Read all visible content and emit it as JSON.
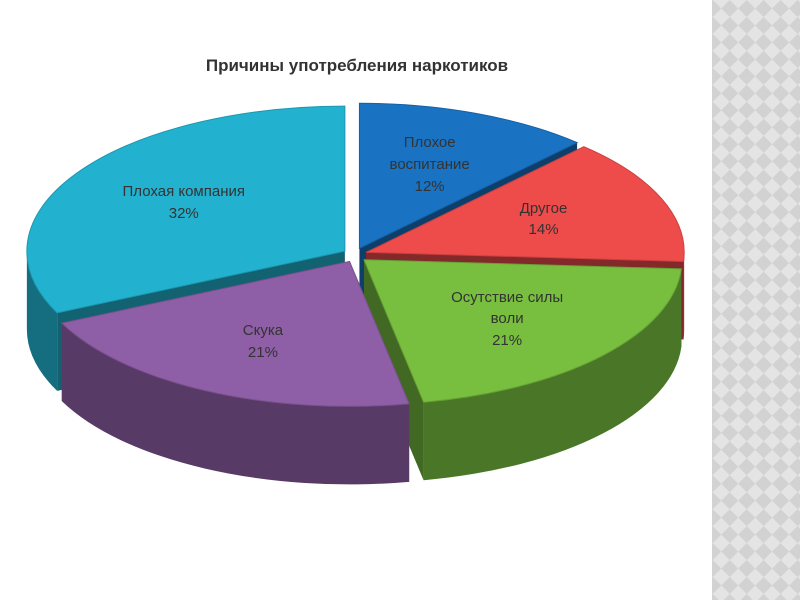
{
  "chart_data": {
    "type": "pie3d",
    "title": "Причины употребления наркотиков",
    "categories": [
      "Плохое воспитание",
      "Другое",
      "Осутствие силы воли",
      "Скука",
      "Плохая компания"
    ],
    "values": [
      12,
      14,
      21,
      21,
      32
    ],
    "value_labels": [
      "12%",
      "14%",
      "21%",
      "21%",
      "32%"
    ],
    "colors": [
      "#1a72c2",
      "#ee4b4b",
      "#78bf3f",
      "#8e5ea6",
      "#22b2cf"
    ]
  }
}
